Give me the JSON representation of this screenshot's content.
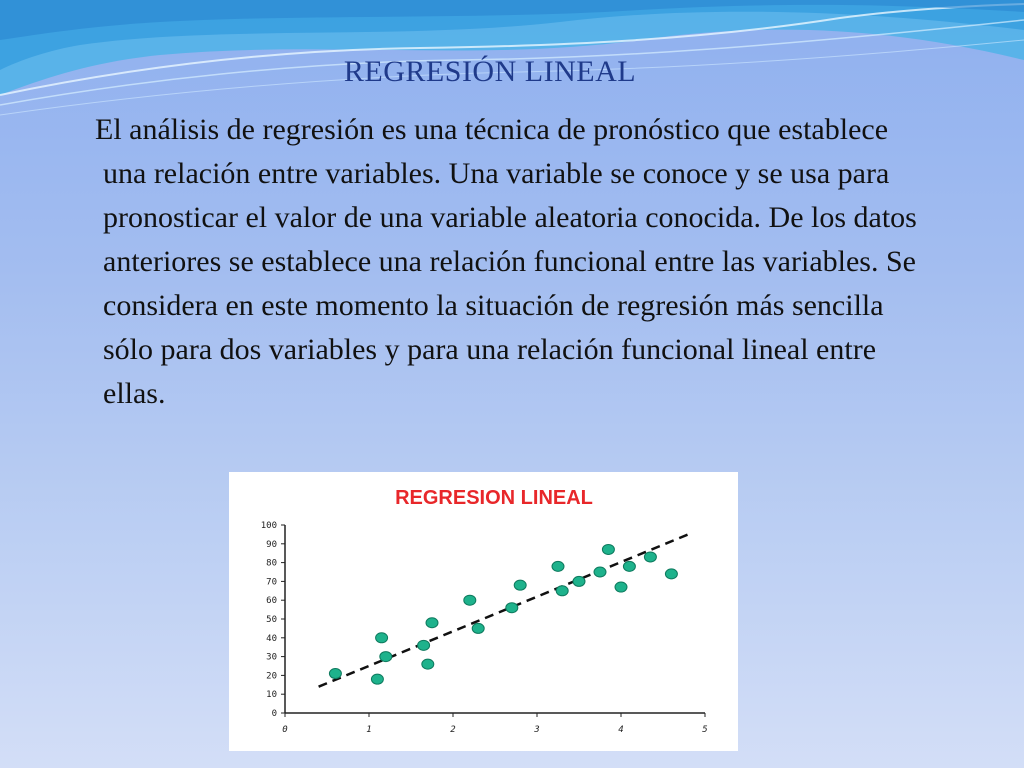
{
  "slide": {
    "title": "REGRESIÓN LINEAL",
    "body": "El análisis de regresión es una técnica de pronóstico que establece una relación entre variables. Una variable se conoce y se usa para pronosticar el valor de una variable aleatoria conocida. De los datos anteriores se establece una relación funcional entre las variables. Se considera en este momento la situación de regresión más sencilla sólo para dos variables y para una relación funcional lineal entre ellas."
  },
  "colors": {
    "title": "#1f3a8a",
    "chart_title": "#e8272a",
    "points": "#1eb28c",
    "points_stroke": "#0e7a5e",
    "trend_line": "#111111"
  },
  "chart_data": {
    "type": "scatter",
    "title": "REGRESION LINEAL",
    "xlabel": "",
    "ylabel": "",
    "xlim": [
      0,
      5
    ],
    "ylim": [
      0,
      100
    ],
    "x_ticks": [
      "0",
      "1",
      "2",
      "3",
      "4",
      "5"
    ],
    "y_ticks": [
      "0",
      "10",
      "20",
      "30",
      "40",
      "50",
      "60",
      "70",
      "80",
      "90",
      "100"
    ],
    "grid": false,
    "points": [
      {
        "x": 0.6,
        "y": 21
      },
      {
        "x": 1.1,
        "y": 18
      },
      {
        "x": 1.15,
        "y": 40
      },
      {
        "x": 1.2,
        "y": 30
      },
      {
        "x": 1.65,
        "y": 36
      },
      {
        "x": 1.7,
        "y": 26
      },
      {
        "x": 1.75,
        "y": 48
      },
      {
        "x": 2.2,
        "y": 60
      },
      {
        "x": 2.3,
        "y": 45
      },
      {
        "x": 2.7,
        "y": 56
      },
      {
        "x": 2.8,
        "y": 68
      },
      {
        "x": 3.25,
        "y": 78
      },
      {
        "x": 3.3,
        "y": 65
      },
      {
        "x": 3.5,
        "y": 70
      },
      {
        "x": 3.75,
        "y": 75
      },
      {
        "x": 3.85,
        "y": 87
      },
      {
        "x": 4.0,
        "y": 67
      },
      {
        "x": 4.1,
        "y": 78
      },
      {
        "x": 4.35,
        "y": 83
      },
      {
        "x": 4.6,
        "y": 74
      }
    ],
    "trend_line": {
      "x": [
        0.4,
        4.8
      ],
      "y": [
        14,
        95
      ],
      "style": "dashed"
    }
  }
}
